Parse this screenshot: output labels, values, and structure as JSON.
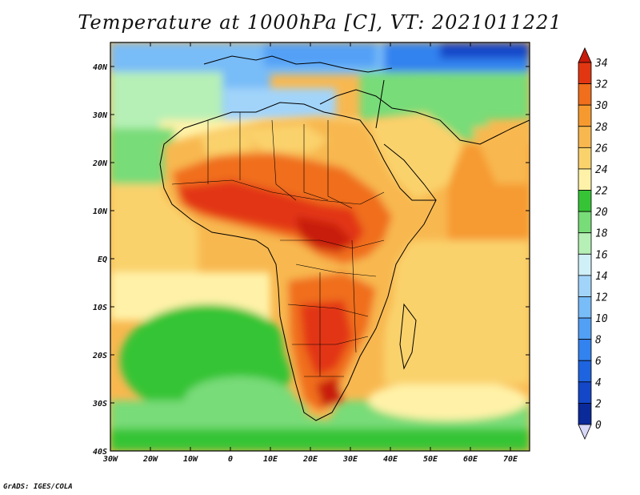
{
  "title": "Temperature at 1000hPa [C], VT: 2021011221",
  "credit": "GrADS: IGES/COLA",
  "lon_labels": [
    "30W",
    "20W",
    "10W",
    "0",
    "10E",
    "20E",
    "30E",
    "40E",
    "50E",
    "60E",
    "70E"
  ],
  "lat_labels": [
    "40N",
    "30N",
    "20N",
    "10N",
    "EQ",
    "10S",
    "20S",
    "30S",
    "40S"
  ],
  "colorbar": {
    "levels": [
      "0",
      "2",
      "4",
      "6",
      "8",
      "10",
      "12",
      "14",
      "16",
      "18",
      "20",
      "22",
      "24",
      "26",
      "28",
      "30",
      "32",
      "34"
    ],
    "colors": [
      "#1a0f7a",
      "#0a2a9a",
      "#1446c8",
      "#1e64e0",
      "#3282f0",
      "#52a0f6",
      "#78bcf8",
      "#a2d4fa",
      "#d0f0f8",
      "#b6f0b6",
      "#78dc78",
      "#36c436",
      "#fff2a8",
      "#fad26c",
      "#f8b850",
      "#f69a30",
      "#f06e1c",
      "#e23612",
      "#c81a0a"
    ],
    "under_color": "#d8d8f8"
  }
}
